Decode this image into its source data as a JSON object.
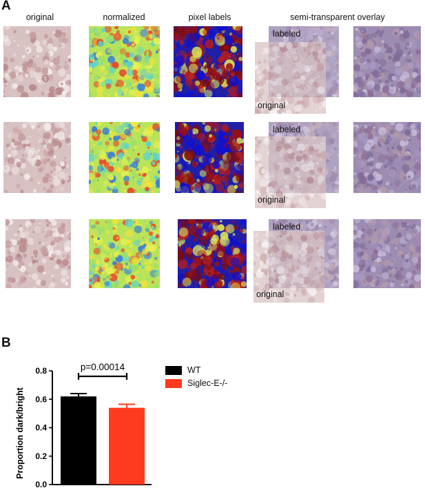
{
  "panel_a": {
    "letter": "A",
    "headers": {
      "original": "original",
      "normalized": "normalized",
      "pixel_labels": "pixel labels",
      "overlay": "semi-transparent overlay"
    },
    "overlay_labels": {
      "labeled": "labeled",
      "original": "original"
    }
  },
  "panel_b": {
    "letter": "B",
    "legend": [
      {
        "name": "WT",
        "color": "#000000"
      },
      {
        "name": "Siglec-E-/-",
        "color": "#ff3b1f"
      }
    ],
    "significance": "p=0.00014"
  },
  "chart_data": {
    "type": "bar",
    "categories": [
      "WT",
      "Siglec-E-/-"
    ],
    "values": [
      0.62,
      0.54
    ],
    "errors": [
      0.02,
      0.025
    ],
    "colors": [
      "#000000",
      "#ff3b1f"
    ],
    "title": "",
    "xlabel": "",
    "ylabel": "Proportion dark/bright",
    "ylim": [
      0.0,
      0.8
    ],
    "yticks": [
      "0.0",
      "0.2",
      "0.4",
      "0.6",
      "0.8"
    ],
    "annotation": "p=0.00014",
    "legend_position": "right"
  }
}
